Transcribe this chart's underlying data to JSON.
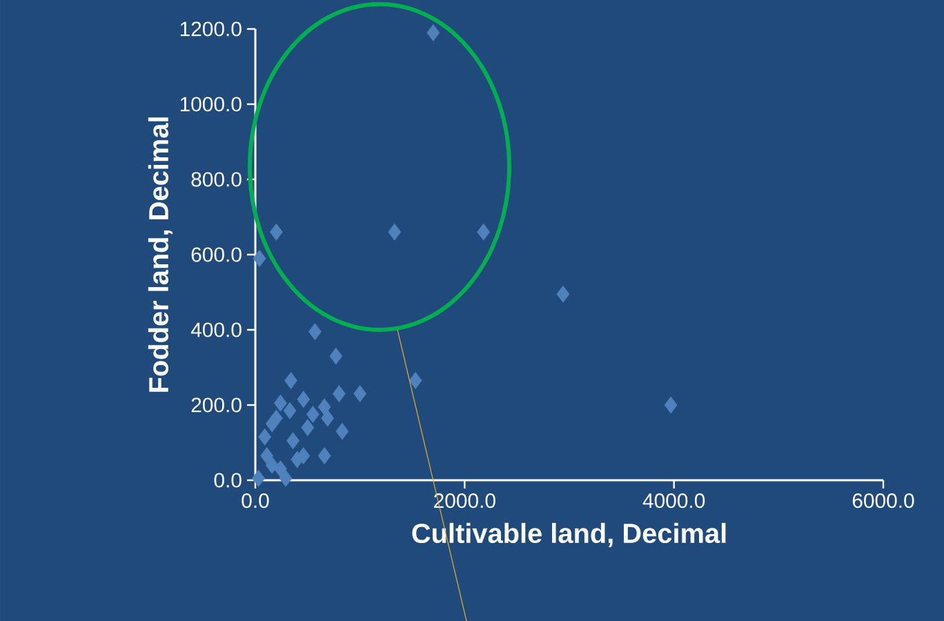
{
  "chart_data": {
    "type": "scatter",
    "xlabel": "Cultivable land, Decimal",
    "ylabel": "Fodder land, Decimal",
    "color": "#4f81bd",
    "marker": "diamond",
    "xlim": [
      0,
      6000
    ],
    "ylim": [
      0,
      1200
    ],
    "xticks": [
      {
        "value": 0,
        "label": "0.0"
      },
      {
        "value": 2000,
        "label": "2000.0"
      },
      {
        "value": 4000,
        "label": "4000.0"
      },
      {
        "value": 6000,
        "label": "6000.0"
      }
    ],
    "yticks": [
      {
        "value": 0,
        "label": "0.0"
      },
      {
        "value": 200,
        "label": "200.0"
      },
      {
        "value": 400,
        "label": "400.0"
      },
      {
        "value": 600,
        "label": "600.0"
      },
      {
        "value": 800,
        "label": "800.0"
      },
      {
        "value": 1000,
        "label": "1000.0"
      },
      {
        "value": 1200,
        "label": "1200.0"
      }
    ],
    "x": [
      1700,
      200,
      40,
      1330,
      2180,
      2940,
      3970,
      1530,
      570,
      770,
      340,
      800,
      1000,
      240,
      660,
      830,
      660,
      360,
      160,
      110,
      30,
      240,
      400,
      500,
      460,
      90,
      290,
      200,
      550,
      330,
      160,
      460,
      690
    ],
    "values": [
      1190,
      660,
      590,
      660,
      660,
      495,
      200,
      265,
      395,
      330,
      265,
      230,
      230,
      205,
      195,
      130,
      65,
      105,
      150,
      65,
      5,
      30,
      55,
      140,
      215,
      115,
      5,
      165,
      175,
      185,
      40,
      65,
      165
    ]
  }
}
